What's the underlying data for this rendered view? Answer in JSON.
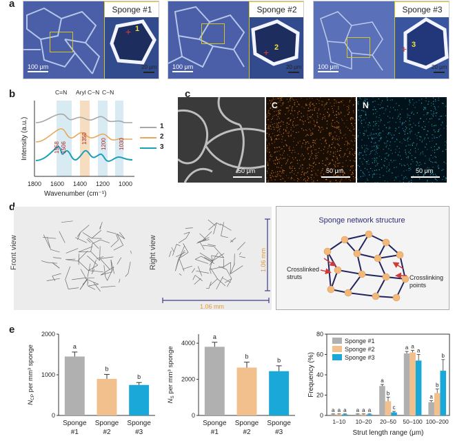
{
  "panel_labels": {
    "a": "a",
    "b": "b",
    "c": "c",
    "d": "d",
    "e": "e"
  },
  "panel_a": {
    "micrographs": [
      {
        "label": "Sponge #1",
        "marker": "1",
        "scale_main": "100 μm",
        "scale_inset": "20 μm"
      },
      {
        "label": "Sponge #2",
        "marker": "2",
        "scale_main": "100 μm",
        "scale_inset": "20 μm"
      },
      {
        "label": "Sponge #3",
        "marker": "3",
        "scale_main": "100 μm",
        "scale_inset": "20 μm"
      }
    ]
  },
  "panel_b": {
    "chart_data": {
      "type": "line",
      "xlabel": "Wavenumber (cm⁻¹)",
      "ylabel": "Intensity (a.u.)",
      "xlim": [
        1800,
        1000
      ],
      "x_ticks": [
        "1800",
        "1600",
        "1400",
        "1200",
        "1000"
      ],
      "band_labels": [
        "C=N",
        "Aryl C−N",
        "C−N"
      ],
      "peak_labels": [
        "1558",
        "1506",
        "1350",
        "1200",
        "1030"
      ],
      "series": [
        {
          "name": "1",
          "color": "#a6a6a6"
        },
        {
          "name": "2",
          "color": "#e8a85c"
        },
        {
          "name": "3",
          "color": "#1a9fb8"
        }
      ]
    }
  },
  "panel_c": {
    "images": [
      {
        "label": "",
        "scale": "50 μm"
      },
      {
        "label": "C",
        "scale": "50 μm"
      },
      {
        "label": "N",
        "scale": "50 μm"
      }
    ]
  },
  "panel_d": {
    "front_view": "Front view",
    "right_view": "Right view",
    "dim_vertical": "1.06 mm",
    "dim_horizontal": "1.06 mm",
    "schematic_title": "Sponge network structure",
    "label_struts": "Crosslinked struts",
    "label_points": "Crosslinking points"
  },
  "panel_e": {
    "chart_data": [
      {
        "type": "bar",
        "ylabel": "N_CP per mm³ sponge",
        "categories": [
          "Sponge #1",
          "Sponge #2",
          "Sponge #3"
        ],
        "values": [
          1450,
          900,
          750
        ],
        "errors": [
          110,
          110,
          60
        ],
        "letters": [
          "a",
          "b",
          "b"
        ],
        "ylim": [
          0,
          2000
        ],
        "y_ticks": [
          "0",
          "1000",
          "2000"
        ],
        "colors": [
          "#b0b0b0",
          "#f2c08c",
          "#1aa8d8"
        ]
      },
      {
        "type": "bar",
        "ylabel": "N_S per mm³ sponge",
        "categories": [
          "Sponge #1",
          "Sponge #2",
          "Sponge #3"
        ],
        "values": [
          3800,
          2650,
          2450
        ],
        "errors": [
          250,
          300,
          300
        ],
        "letters": [
          "a",
          "b",
          "b"
        ],
        "ylim": [
          0,
          4500
        ],
        "y_ticks": [
          "0",
          "2000",
          "4000"
        ],
        "colors": [
          "#b0b0b0",
          "#f2c08c",
          "#1aa8d8"
        ]
      },
      {
        "type": "bar",
        "ylabel": "Frequency (%)",
        "xlabel": "Strut length range (μm)",
        "categories": [
          "1–10",
          "10–20",
          "20–50",
          "50–100",
          "100–200"
        ],
        "ylim": [
          0,
          80
        ],
        "y_ticks": [
          "0",
          "20",
          "40",
          "60",
          "80"
        ],
        "series": [
          {
            "name": "Sponge #1",
            "color": "#b0b0b0",
            "values": [
              1,
              1,
              29,
              61,
              13
            ],
            "errors": [
              0.5,
              0.5,
              1.5,
              2,
              1.5
            ],
            "letters": [
              "a",
              "a",
              "a",
              "a",
              "a"
            ]
          },
          {
            "name": "Sponge #2",
            "color": "#f2c08c",
            "values": [
              1,
              1,
              14,
              62,
              22
            ],
            "errors": [
              0.5,
              0.5,
              4,
              2,
              4
            ],
            "letters": [
              "a",
              "a",
              "b",
              "a",
              "b"
            ]
          },
          {
            "name": "Sponge #3",
            "color": "#1aa8d8",
            "values": [
              1,
              1,
              3,
              54,
              44
            ],
            "errors": [
              0.5,
              0.5,
              1,
              6,
              11
            ],
            "letters": [
              "a",
              "a",
              "c",
              "a",
              "b"
            ]
          }
        ]
      }
    ]
  }
}
